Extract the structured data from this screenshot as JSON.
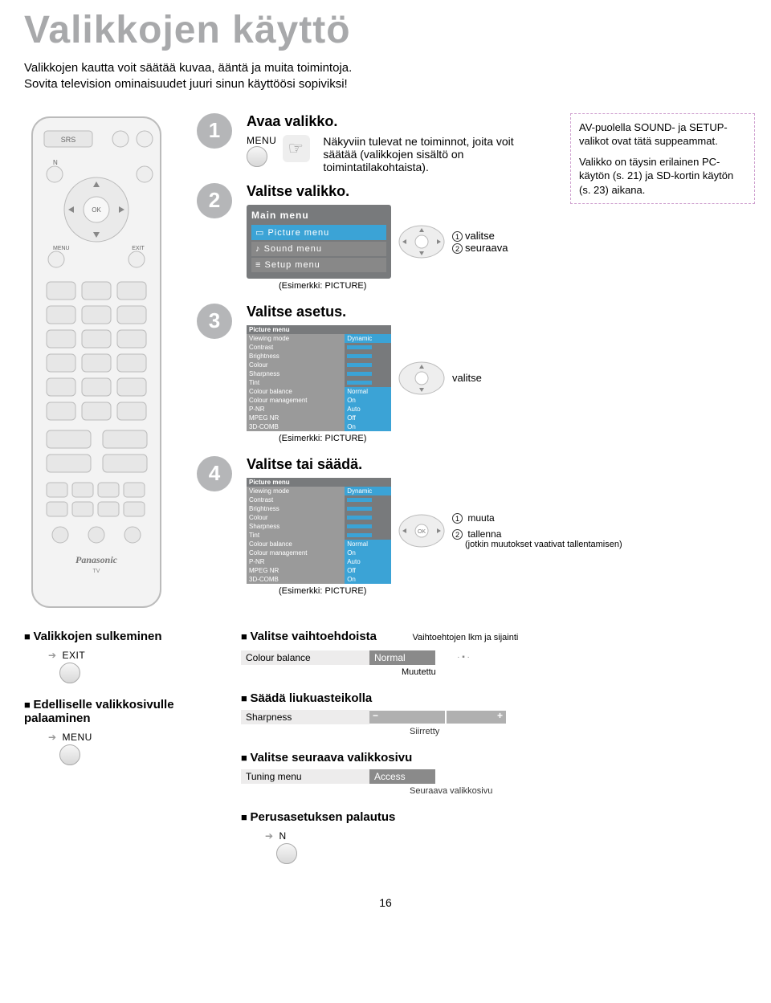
{
  "title": "Valikkojen käyttö",
  "intro_line1": "Valikkojen kautta voit säätää kuvaa, ääntä ja muita toimintoja.",
  "intro_line2": "Sovita television ominaisuudet juuri sinun käyttöösi sopiviksi!",
  "steps": {
    "s1": {
      "num": "1",
      "title": "Avaa valikko.",
      "menu_label": "MENU",
      "desc": "Näkyviin tulevat ne toiminnot, joita voit säätää (valikkojen sisältö on toimintatilakohtaista)."
    },
    "s2": {
      "num": "2",
      "title": "Valitse valikko.",
      "menu_header": "Main menu",
      "menu_items": [
        "Picture menu",
        "Sound menu",
        "Setup menu"
      ],
      "dpad_label1": "valitse",
      "dpad_label2": "seuraava",
      "example": "(Esimerkki: PICTURE)"
    },
    "s3": {
      "num": "3",
      "title": "Valitse asetus.",
      "dpad_label": "valitse",
      "example": "(Esimerkki: PICTURE)"
    },
    "s4": {
      "num": "4",
      "title": "Valitse tai säädä.",
      "dpad_label1": "muuta",
      "dpad_label2": "tallenna",
      "dpad_sub": "(jotkin muutokset vaativat tallentamisen)",
      "example": "(Esimerkki: PICTURE)"
    }
  },
  "note": {
    "p1": "AV-puolella SOUND- ja SETUP-valikot ovat tätä suppeammat.",
    "p2": "Valikko on täysin erilainen PC-käytön (s. 21) ja SD-kortin käytön (s. 23) aikana."
  },
  "picture_menu": {
    "header": "Picture menu",
    "rows": [
      [
        "Viewing mode",
        "Dynamic"
      ],
      [
        "Contrast",
        ""
      ],
      [
        "Brightness",
        ""
      ],
      [
        "Colour",
        ""
      ],
      [
        "Sharpness",
        ""
      ],
      [
        "Tint",
        ""
      ],
      [
        "Colour balance",
        "Normal"
      ],
      [
        "Colour management",
        "On"
      ],
      [
        "P-NR",
        "Auto"
      ],
      [
        "MPEG NR",
        "Off"
      ],
      [
        "3D-COMB",
        "On"
      ]
    ]
  },
  "bottom": {
    "close": {
      "heading": "Valikkojen sulkeminen",
      "btn": "EXIT"
    },
    "back": {
      "heading": "Edelliselle valikkosivulle palaaminen",
      "btn": "MENU"
    },
    "choose": {
      "heading": "Valitse vaihtoehdoista",
      "label": "Colour balance",
      "value": "Normal",
      "cap1": "Vaihtoehtojen lkm ja sijainti",
      "cap2": "Muutettu"
    },
    "slider": {
      "heading": "Säädä liukuasteikolla",
      "label": "Sharpness",
      "cap": "Siirretty"
    },
    "next": {
      "heading": "Valitse seuraava valikkosivu",
      "label": "Tuning menu",
      "value": "Access",
      "cap": "Seuraava valikkosivu"
    },
    "reset": {
      "heading": "Perusasetuksen palautus",
      "btn": "N"
    }
  },
  "remote": {
    "brand": "Panasonic",
    "sub": "TV",
    "srs": "SRS",
    "ok": "OK",
    "menu": "MENU",
    "exit": "EXIT",
    "n": "N"
  },
  "page": "16",
  "colors": {
    "badge": "#b5b6b8",
    "title": "#a8a9ab",
    "menu_bg": "#787a7c",
    "menu_active": "#3ba3d6",
    "note_border": "#cfa0cf"
  }
}
